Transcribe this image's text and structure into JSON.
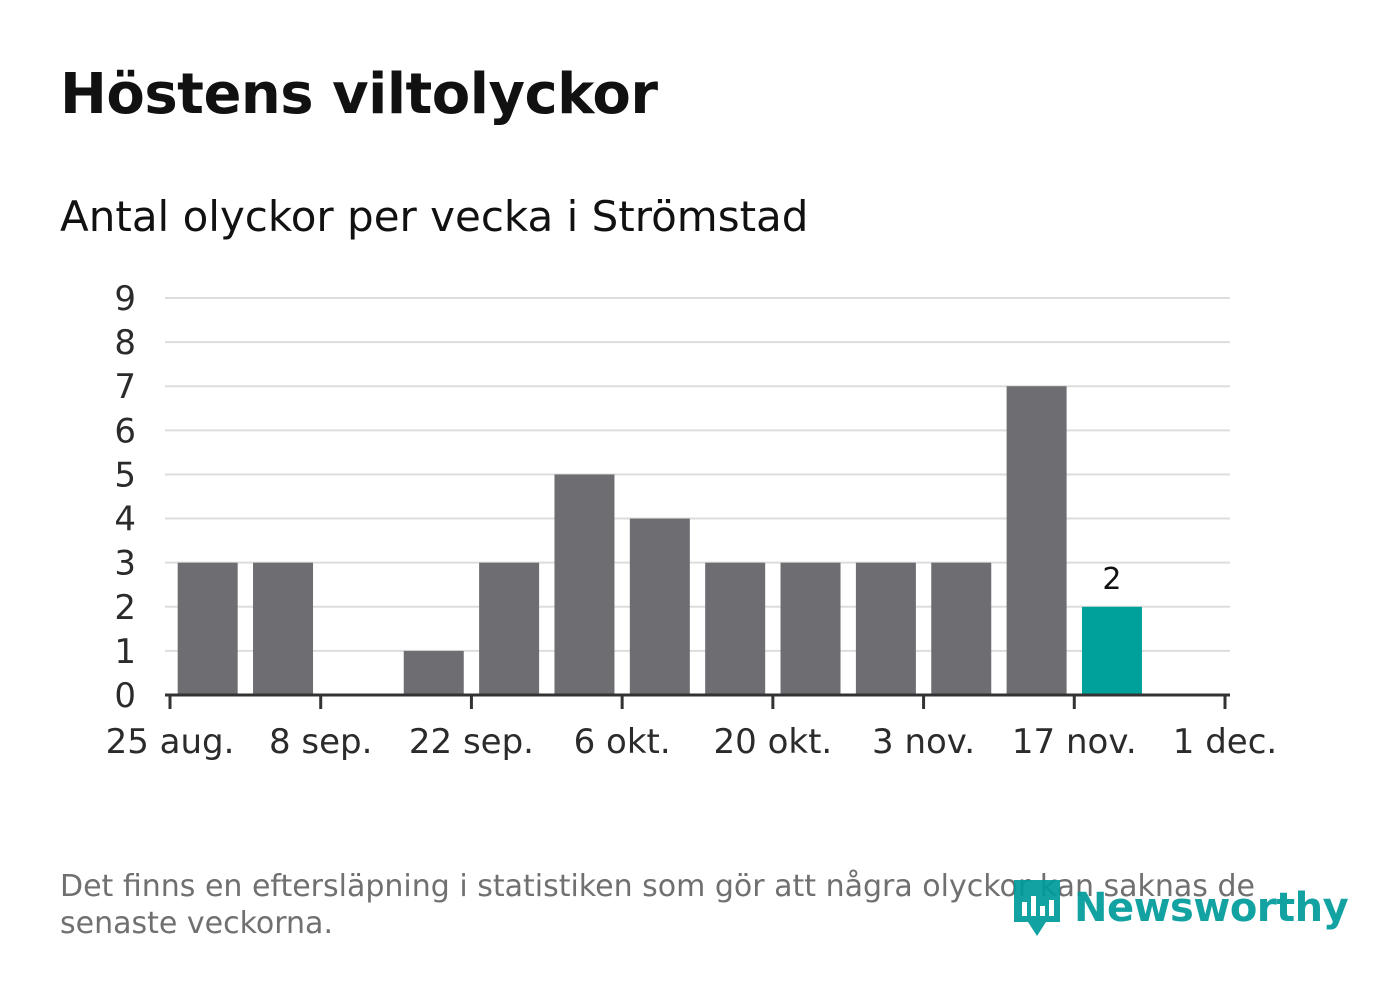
{
  "title": "Höstens viltolyckor",
  "subtitle": "Antal olyckor per vecka i Strömstad",
  "footnote": "Det finns en eftersläpning i statistiken som gör att några olyckor kan saknas de senaste veckorna.",
  "logo": {
    "text": "Newsworthy",
    "icon": "bar-chart-pin-icon"
  },
  "colors": {
    "bar": "#6e6d72",
    "highlight": "#00a19a",
    "grid": "#dddddd",
    "axis": "#333333",
    "logo": "#009b9b"
  },
  "chart_data": {
    "type": "bar",
    "title": "Höstens viltolyckor",
    "subtitle": "Antal olyckor per vecka i Strömstad",
    "xlabel": "",
    "ylabel": "",
    "ylim": [
      0,
      9
    ],
    "yticks": [
      "0",
      "1",
      "2",
      "3",
      "4",
      "5",
      "6",
      "7",
      "8",
      "9"
    ],
    "x_range_weeks": [
      0,
      14
    ],
    "xticks": [
      {
        "week": 0,
        "label": "25 aug."
      },
      {
        "week": 2,
        "label": "8 sep."
      },
      {
        "week": 4,
        "label": "22 sep."
      },
      {
        "week": 6,
        "label": "6 okt."
      },
      {
        "week": 8,
        "label": "20 okt."
      },
      {
        "week": 10,
        "label": "3 nov."
      },
      {
        "week": 12,
        "label": "17 nov."
      },
      {
        "week": 14,
        "label": "1 dec."
      }
    ],
    "bars": [
      {
        "week": 1,
        "value": 3
      },
      {
        "week": 2,
        "value": 3
      },
      {
        "week": 3,
        "value": 0
      },
      {
        "week": 4,
        "value": 1
      },
      {
        "week": 5,
        "value": 3
      },
      {
        "week": 6,
        "value": 5
      },
      {
        "week": 7,
        "value": 4
      },
      {
        "week": 8,
        "value": 3
      },
      {
        "week": 9,
        "value": 3
      },
      {
        "week": 10,
        "value": 3
      },
      {
        "week": 11,
        "value": 3
      },
      {
        "week": 12,
        "value": 7
      },
      {
        "week": 13,
        "value": 2,
        "highlight": true,
        "label": "2"
      }
    ],
    "grid": true
  }
}
